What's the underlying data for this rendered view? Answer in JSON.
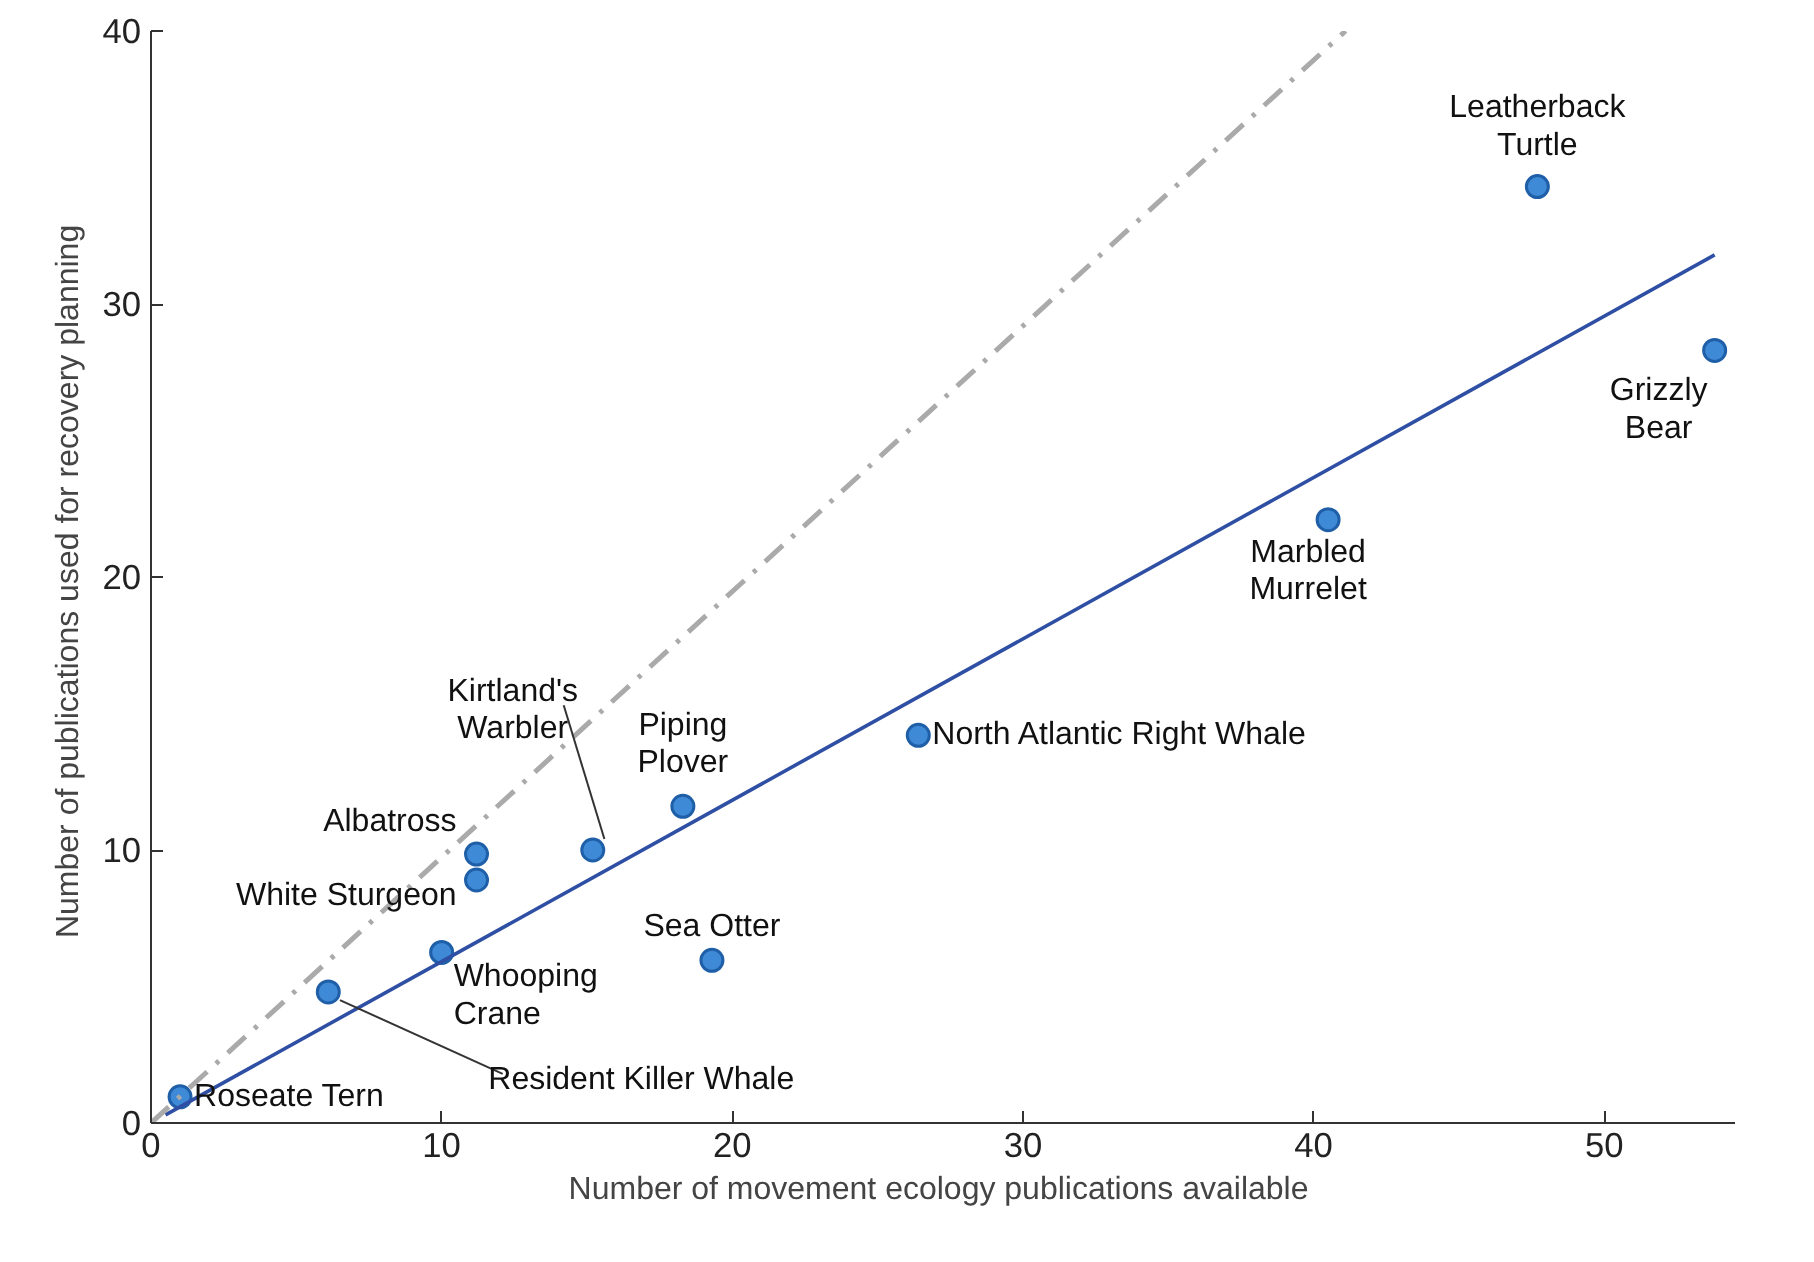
{
  "chart_data": {
    "type": "scatter",
    "xlabel": "Number  of movement ecology publications available",
    "ylabel": "Number  of publications used for recovery planning",
    "xlim": [
      0,
      54.5
    ],
    "ylim": [
      0,
      40
    ],
    "xticks": [
      0,
      10,
      20,
      30,
      40,
      50
    ],
    "yticks": [
      0,
      10,
      20,
      30,
      40
    ],
    "grid": false,
    "marker": "circle",
    "series": [
      {
        "color": "#3f8ad6",
        "x": [
          1,
          6.1,
          10,
          11.2,
          11.2,
          15.2,
          18.3,
          19.3,
          26.4,
          40.5,
          47.7,
          53.8
        ],
        "values": [
          0.96,
          4.8,
          6.25,
          9.85,
          8.9,
          10,
          11.6,
          5.96,
          14.2,
          22.1,
          34.3,
          28.3
        ]
      },
      {
        "type": "line",
        "color": "#2e4fa3",
        "line_style": "solid",
        "marker": "none",
        "x": [
          0.5,
          53.8
        ],
        "values": [
          0.3,
          31.8
        ]
      },
      {
        "type": "line",
        "color": "#aaaaaa",
        "line_style": "dashdot",
        "marker": "none",
        "x": [
          0,
          41.1
        ],
        "values": [
          0,
          40
        ]
      }
    ],
    "annotations": [
      {
        "text": "Roseate Tern",
        "x": 1,
        "y": 0.96
      },
      {
        "text": "Resident Killer Whale",
        "x": 6.1,
        "y": 4.8
      },
      {
        "text": "Whooping\nCrane",
        "x": 10,
        "y": 6.25
      },
      {
        "text": "Albatross",
        "x": 11.2,
        "y": 9.85
      },
      {
        "text": "White Sturgeon",
        "x": 11.2,
        "y": 8.9
      },
      {
        "text": "Kirtland's\nWarbler",
        "x": 15.2,
        "y": 10
      },
      {
        "text": "Piping\nPlover",
        "x": 18.3,
        "y": 11.6
      },
      {
        "text": "Sea Otter",
        "x": 19.3,
        "y": 5.96
      },
      {
        "text": "North Atlantic Right Whale",
        "x": 26.4,
        "y": 14.2
      },
      {
        "text": "Marbled\nMurrelet",
        "x": 40.5,
        "y": 22.1
      },
      {
        "text": "Leatherback\nTurtle",
        "x": 47.7,
        "y": 34.3
      },
      {
        "text": "Grizzly\nBear",
        "x": 53.8,
        "y": 28.3
      }
    ]
  }
}
